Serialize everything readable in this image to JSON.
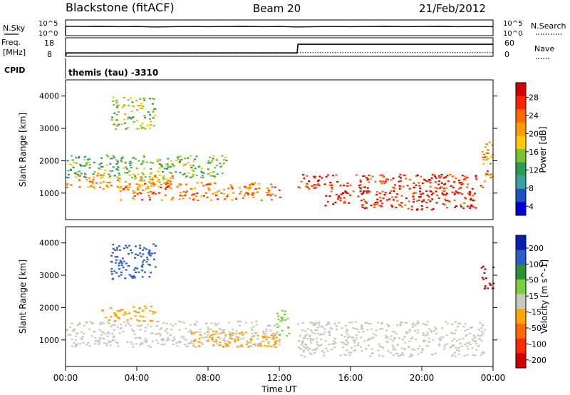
{
  "header": {
    "station": "Blackstone (fitACF)",
    "beam": "Beam 20",
    "date": "21/Feb/2012"
  },
  "strips": {
    "nsky_label": "N.Sky",
    "nsky_ticks": [
      "10^5",
      "10^0"
    ],
    "nsearch_label": "N.Search",
    "nsearch_ticks": [
      "10^5",
      "10^0"
    ],
    "freq_label_1": "Freq.",
    "freq_label_2": "[MHz]",
    "freq_ticks": [
      "18",
      "8"
    ],
    "nave_label": "Nave",
    "nave_ticks": [
      "60",
      "0"
    ],
    "cpid_label": "CPID",
    "cpid_text": "themis (tau) -3310"
  },
  "power_panel": {
    "ylabel": "Slant Range [km]",
    "yticks": [
      "4000",
      "3000",
      "2000",
      "1000"
    ],
    "colorbar_label": "Power [dB]",
    "colorbar_ticks": [
      "28",
      "24",
      "20",
      "16",
      "12",
      "8",
      "4"
    ],
    "colors": [
      "#d40000",
      "#ff2200",
      "#ff6a00",
      "#ff9a00",
      "#ffc800",
      "#7cc230",
      "#2e9a5a",
      "#3aa0a0",
      "#1f4fc4",
      "#0000d8"
    ]
  },
  "velocity_panel": {
    "ylabel": "Slant Range [km]",
    "yticks": [
      "4000",
      "3000",
      "2000",
      "1000"
    ],
    "colorbar_label": "Velocity [m s^-1]",
    "colorbar_ticks": [
      "200",
      "100",
      "50",
      "15",
      "-15",
      "-50",
      "-100",
      "-200"
    ],
    "colors": [
      "#0a1fb0",
      "#2a5fc8",
      "#2c8f3a",
      "#7cd040",
      "#c8c8c0",
      "#ffa500",
      "#ff6a00",
      "#ff2a00",
      "#d00000"
    ]
  },
  "xaxis": {
    "label": "Time UT",
    "ticks": [
      "00:00",
      "04:00",
      "08:00",
      "12:00",
      "16:00",
      "20:00",
      "00:00"
    ]
  },
  "chart_data": [
    {
      "type": "line",
      "title": "N.Sky / N.Search",
      "x_unit": "hours UT",
      "x": [
        0,
        1,
        2,
        3,
        4,
        5,
        6,
        7,
        8,
        9,
        10,
        11,
        12,
        13,
        14,
        15,
        16,
        17,
        18,
        19,
        20,
        21,
        22,
        23,
        24
      ],
      "series": [
        {
          "name": "N.Sky",
          "values": [
            1000,
            800,
            900,
            700,
            800,
            600,
            700,
            800,
            700,
            800,
            900,
            700,
            800,
            600,
            700,
            800,
            700,
            800,
            900,
            700,
            800,
            900,
            700,
            800,
            700
          ]
        }
      ],
      "yscale": "log",
      "ylim": [
        1,
        100000
      ]
    },
    {
      "type": "line",
      "title": "Freq. [MHz] / Nave",
      "x": [
        0,
        0.05,
        13,
        13.05,
        24
      ],
      "series": [
        {
          "name": "Freq.",
          "values": [
            8,
            9.8,
            9.8,
            14.5,
            14.5
          ]
        },
        {
          "name": "Nave",
          "values": [
            10,
            10,
            10,
            10,
            10
          ]
        }
      ],
      "ylim": [
        8,
        18
      ]
    },
    {
      "type": "heatmap",
      "title": "Power [dB]",
      "xlabel": "Time UT",
      "ylabel": "Slant Range [km]",
      "xlim": [
        0,
        24
      ],
      "ylim": [
        180,
        4500
      ],
      "color_scale": [
        4,
        28
      ],
      "regions": [
        {
          "t0": 0,
          "t1": 6,
          "r0": 1150,
          "r1": 1650,
          "power": 18
        },
        {
          "t0": 0,
          "t1": 9,
          "r0": 1500,
          "r1": 2200,
          "power": 11
        },
        {
          "t0": 3,
          "t1": 12,
          "r0": 800,
          "r1": 1350,
          "power": 21
        },
        {
          "t0": 2.5,
          "t1": 5,
          "r0": 3000,
          "r1": 4000,
          "power": 14
        },
        {
          "t0": 13,
          "t1": 23.5,
          "r0": 1150,
          "r1": 1600,
          "power": 25
        },
        {
          "t0": 14.5,
          "t1": 23,
          "r0": 500,
          "r1": 1100,
          "power": 26
        },
        {
          "t0": 23.3,
          "t1": 24,
          "r0": 1500,
          "r1": 2600,
          "power": 20
        }
      ]
    },
    {
      "type": "heatmap",
      "title": "Velocity [m s^-1]",
      "xlabel": "Time UT",
      "ylabel": "Slant Range [km]",
      "xlim": [
        0,
        24
      ],
      "ylim": [
        180,
        4500
      ],
      "color_scale": [
        -200,
        200
      ],
      "regions": [
        {
          "t0": 0,
          "t1": 12,
          "r0": 800,
          "r1": 1600,
          "velocity": 0
        },
        {
          "t0": 2,
          "t1": 5,
          "r0": 1600,
          "r1": 2100,
          "velocity": -60
        },
        {
          "t0": 2.5,
          "t1": 5,
          "r0": 2900,
          "r1": 4000,
          "velocity": 150
        },
        {
          "t0": 7,
          "t1": 12,
          "r0": 800,
          "r1": 1300,
          "velocity": -40
        },
        {
          "t0": 11.8,
          "t1": 12.5,
          "r0": 1100,
          "r1": 2000,
          "velocity": 30
        },
        {
          "t0": 13,
          "t1": 23.5,
          "r0": 500,
          "r1": 1600,
          "velocity": 0
        },
        {
          "t0": 23.3,
          "t1": 24,
          "r0": 2600,
          "r1": 3300,
          "velocity": -200
        }
      ]
    }
  ]
}
